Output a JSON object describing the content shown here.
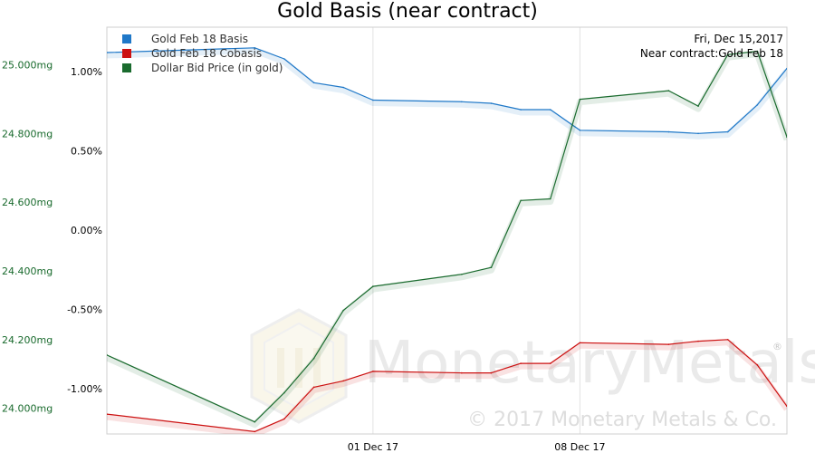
{
  "chart_data": {
    "type": "line",
    "title": "Gold Basis (near contract)",
    "x": [
      "2017-11-22",
      "2017-11-27",
      "2017-11-28",
      "2017-11-29",
      "2017-11-30",
      "2017-12-01",
      "2017-12-04",
      "2017-12-05",
      "2017-12-06",
      "2017-12-07",
      "2017-12-08",
      "2017-12-11",
      "2017-12-12",
      "2017-12-13",
      "2017-12-14",
      "2017-12-15"
    ],
    "x_ticks": [
      "01 Dec 17",
      "08 Dec 17"
    ],
    "left_axis": {
      "ticks": [
        "25.000mg",
        "24.800mg",
        "24.600mg",
        "24.400mg",
        "24.200mg",
        "24.000mg"
      ],
      "range": [
        23.925,
        25.11
      ]
    },
    "right_axis": {
      "ticks": [
        "1.00%",
        "0.50%",
        "0.00%",
        "-0.50%",
        "-1.00%"
      ],
      "range": [
        -1.285,
        1.28
      ]
    },
    "series": [
      {
        "name": "Gold Feb 18 Basis",
        "color": "#1f78c8",
        "axis": "right",
        "values": [
          1.12,
          1.15,
          1.08,
          0.93,
          0.9,
          0.82,
          0.81,
          0.8,
          0.76,
          0.76,
          0.63,
          0.62,
          0.61,
          0.62,
          0.79,
          1.02
        ]
      },
      {
        "name": "Gold Feb 18 Cobasis",
        "color": "#cc1111",
        "axis": "right",
        "values": [
          -1.16,
          -1.27,
          -1.19,
          -0.99,
          -0.95,
          -0.89,
          -0.9,
          -0.9,
          -0.84,
          -0.84,
          -0.71,
          -0.72,
          -0.7,
          -0.69,
          -0.85,
          -1.11
        ]
      },
      {
        "name": "Dollar Bid Price (in gold)",
        "color": "#1a6b2e",
        "axis": "left",
        "values": [
          24.155,
          23.96,
          24.045,
          24.145,
          24.285,
          24.355,
          24.39,
          24.41,
          24.605,
          24.61,
          24.9,
          24.925,
          24.88,
          25.03,
          25.04,
          24.79
        ]
      }
    ],
    "legend": {
      "placement": "top-left",
      "entries": [
        "Gold Feb 18 Basis",
        "Gold Feb 18 Cobasis",
        "Dollar Bid Price (in gold)"
      ]
    },
    "annotations": [
      "Fri, Dec 15,2017",
      "Near contract:Gold Feb 18"
    ],
    "watermark": {
      "main": "MonetaryMetals",
      "registered": "®",
      "sub": "© 2017 Monetary Metals & Co."
    },
    "grid": true
  }
}
